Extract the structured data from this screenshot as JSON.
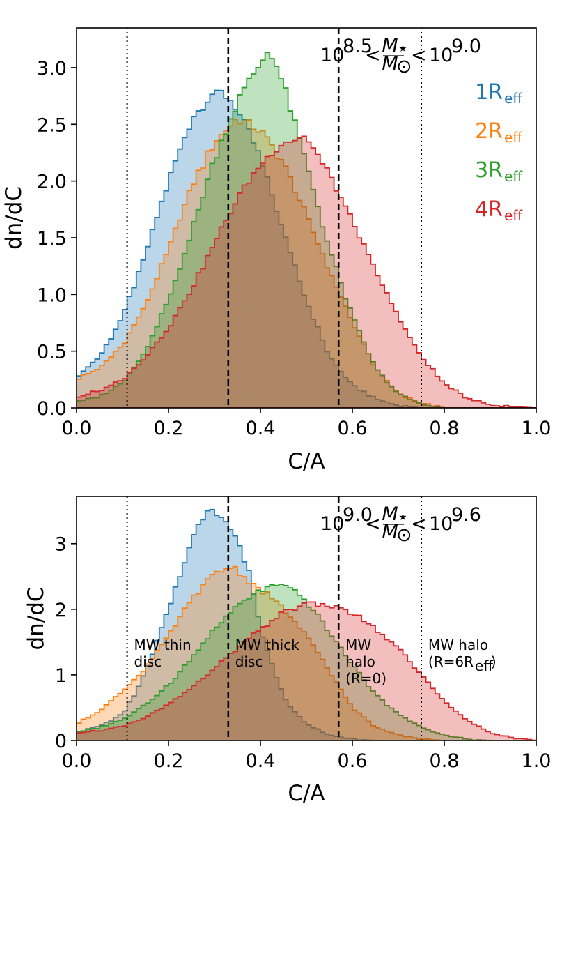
{
  "chart_data": [
    {
      "type": "histogram",
      "title_parts": {
        "low": "10",
        "low_exp": "8.5",
        "lt": "<",
        "mass_num": "M",
        "mass_num_sub": "⋆",
        "mass_den": "M",
        "mass_den_sub": "⊙",
        "high": "10",
        "high_exp": "9.0"
      },
      "xlabel": "C/A",
      "ylabel": "dn/dC",
      "xlim": [
        0,
        1
      ],
      "ylim": [
        0,
        3.35
      ],
      "xticks": [
        "0.0",
        "0.2",
        "0.4",
        "0.6",
        "0.8",
        "1.0"
      ],
      "yticks": [
        "0.0",
        "0.5",
        "1.0",
        "1.5",
        "2.0",
        "2.5",
        "3.0"
      ],
      "ytick_values": [
        0,
        0.5,
        1.0,
        1.5,
        2.0,
        2.5,
        3.0
      ],
      "reference_lines": [
        {
          "x": 0.11,
          "style": "dotted"
        },
        {
          "x": 0.33,
          "style": "dashed"
        },
        {
          "x": 0.57,
          "style": "dashed"
        },
        {
          "x": 0.75,
          "style": "dotted"
        }
      ],
      "series": [
        {
          "name": "1R",
          "sub": "eff",
          "color": "#1f77b4",
          "peak": [
            0.3,
            2.8
          ],
          "points": [
            [
              0.0,
              0.27
            ],
            [
              0.05,
              0.45
            ],
            [
              0.1,
              0.8
            ],
            [
              0.15,
              1.35
            ],
            [
              0.2,
              2.0
            ],
            [
              0.25,
              2.55
            ],
            [
              0.3,
              2.8
            ],
            [
              0.33,
              2.75
            ],
            [
              0.36,
              2.55
            ],
            [
              0.4,
              2.2
            ],
            [
              0.45,
              1.55
            ],
            [
              0.5,
              0.95
            ],
            [
              0.55,
              0.45
            ],
            [
              0.6,
              0.2
            ],
            [
              0.65,
              0.08
            ],
            [
              0.7,
              0.02
            ],
            [
              0.75,
              0.0
            ]
          ]
        },
        {
          "name": "2R",
          "sub": "eff",
          "color": "#ff7f0e",
          "peak": [
            0.36,
            2.55
          ],
          "points": [
            [
              0.0,
              0.25
            ],
            [
              0.05,
              0.35
            ],
            [
              0.1,
              0.55
            ],
            [
              0.15,
              0.9
            ],
            [
              0.2,
              1.4
            ],
            [
              0.25,
              1.95
            ],
            [
              0.3,
              2.35
            ],
            [
              0.35,
              2.55
            ],
            [
              0.4,
              2.45
            ],
            [
              0.45,
              2.15
            ],
            [
              0.5,
              1.7
            ],
            [
              0.55,
              1.2
            ],
            [
              0.6,
              0.75
            ],
            [
              0.65,
              0.35
            ],
            [
              0.7,
              0.12
            ],
            [
              0.75,
              0.04
            ],
            [
              0.8,
              0.0
            ]
          ]
        },
        {
          "name": "3R",
          "sub": "eff",
          "color": "#2ca02c",
          "peak": [
            0.42,
            3.18
          ],
          "points": [
            [
              0.0,
              0.05
            ],
            [
              0.05,
              0.1
            ],
            [
              0.1,
              0.22
            ],
            [
              0.15,
              0.5
            ],
            [
              0.2,
              0.95
            ],
            [
              0.25,
              1.55
            ],
            [
              0.3,
              2.2
            ],
            [
              0.35,
              2.7
            ],
            [
              0.4,
              3.05
            ],
            [
              0.42,
              3.18
            ],
            [
              0.45,
              2.85
            ],
            [
              0.5,
              2.15
            ],
            [
              0.55,
              1.4
            ],
            [
              0.6,
              0.8
            ],
            [
              0.65,
              0.35
            ],
            [
              0.7,
              0.12
            ],
            [
              0.75,
              0.03
            ],
            [
              0.8,
              0.0
            ]
          ]
        },
        {
          "name": "4R",
          "sub": "eff",
          "color": "#d62728",
          "peak": [
            0.48,
            2.45
          ],
          "points": [
            [
              0.0,
              0.1
            ],
            [
              0.05,
              0.15
            ],
            [
              0.1,
              0.25
            ],
            [
              0.15,
              0.45
            ],
            [
              0.2,
              0.7
            ],
            [
              0.25,
              1.05
            ],
            [
              0.3,
              1.45
            ],
            [
              0.35,
              1.85
            ],
            [
              0.4,
              2.15
            ],
            [
              0.45,
              2.35
            ],
            [
              0.5,
              2.4
            ],
            [
              0.55,
              2.05
            ],
            [
              0.6,
              1.65
            ],
            [
              0.65,
              1.2
            ],
            [
              0.7,
              0.8
            ],
            [
              0.75,
              0.45
            ],
            [
              0.8,
              0.22
            ],
            [
              0.85,
              0.08
            ],
            [
              0.9,
              0.03
            ],
            [
              0.95,
              0.01
            ],
            [
              1.0,
              0.0
            ]
          ]
        }
      ]
    },
    {
      "type": "histogram",
      "title_parts": {
        "low": "10",
        "low_exp": "9.0",
        "lt": "<",
        "mass_num": "M",
        "mass_num_sub": "⋆",
        "mass_den": "M",
        "mass_den_sub": "⊙",
        "high": "10",
        "high_exp": "9.6"
      },
      "xlabel": "C/A",
      "ylabel": "dn/dC",
      "xlim": [
        0,
        1
      ],
      "ylim": [
        0,
        3.72
      ],
      "xticks": [
        "0.0",
        "0.2",
        "0.4",
        "0.6",
        "0.8",
        "1.0"
      ],
      "yticks": [
        "0",
        "1",
        "2",
        "3"
      ],
      "ytick_values": [
        0,
        1,
        2,
        3
      ],
      "reference_lines": [
        {
          "x": 0.11,
          "style": "dotted"
        },
        {
          "x": 0.33,
          "style": "dashed"
        },
        {
          "x": 0.57,
          "style": "dashed"
        },
        {
          "x": 0.75,
          "style": "dotted"
        }
      ],
      "annotations": [
        {
          "x": 0.125,
          "lines": [
            "MW thin",
            "disc"
          ]
        },
        {
          "x": 0.345,
          "lines": [
            "MW thick",
            "disc"
          ]
        },
        {
          "x": 0.585,
          "lines": [
            "MW",
            "halo",
            "(R=0)"
          ]
        },
        {
          "x": 0.765,
          "lines": [
            "MW halo",
            "(R=6R",
            "eff",
            ")"
          ]
        }
      ],
      "series": [
        {
          "name": "1R",
          "sub": "eff",
          "color": "#1f77b4",
          "peak": [
            0.29,
            3.58
          ],
          "points": [
            [
              0.0,
              0.12
            ],
            [
              0.05,
              0.22
            ],
            [
              0.1,
              0.4
            ],
            [
              0.13,
              0.75
            ],
            [
              0.16,
              1.2
            ],
            [
              0.2,
              2.0
            ],
            [
              0.24,
              2.85
            ],
            [
              0.27,
              3.35
            ],
            [
              0.29,
              3.58
            ],
            [
              0.32,
              3.4
            ],
            [
              0.35,
              3.05
            ],
            [
              0.38,
              2.45
            ],
            [
              0.4,
              1.7
            ],
            [
              0.43,
              1.05
            ],
            [
              0.46,
              0.55
            ],
            [
              0.5,
              0.25
            ],
            [
              0.55,
              0.08
            ],
            [
              0.6,
              0.02
            ],
            [
              0.65,
              0.0
            ]
          ]
        },
        {
          "name": "2R",
          "sub": "eff",
          "color": "#ff7f0e",
          "peak": [
            0.34,
            2.65
          ],
          "points": [
            [
              0.0,
              0.25
            ],
            [
              0.05,
              0.45
            ],
            [
              0.1,
              0.75
            ],
            [
              0.15,
              1.1
            ],
            [
              0.2,
              1.6
            ],
            [
              0.25,
              2.15
            ],
            [
              0.3,
              2.55
            ],
            [
              0.34,
              2.65
            ],
            [
              0.38,
              2.4
            ],
            [
              0.42,
              2.2
            ],
            [
              0.45,
              2.0
            ],
            [
              0.5,
              1.6
            ],
            [
              0.55,
              1.05
            ],
            [
              0.6,
              0.5
            ],
            [
              0.65,
              0.2
            ],
            [
              0.7,
              0.08
            ],
            [
              0.75,
              0.02
            ],
            [
              0.8,
              0.0
            ]
          ]
        },
        {
          "name": "3R",
          "sub": "eff",
          "color": "#2ca02c",
          "peak": [
            0.44,
            2.38
          ],
          "points": [
            [
              0.0,
              0.12
            ],
            [
              0.05,
              0.2
            ],
            [
              0.1,
              0.32
            ],
            [
              0.15,
              0.55
            ],
            [
              0.2,
              0.85
            ],
            [
              0.25,
              1.25
            ],
            [
              0.3,
              1.7
            ],
            [
              0.35,
              2.05
            ],
            [
              0.4,
              2.3
            ],
            [
              0.44,
              2.38
            ],
            [
              0.48,
              2.25
            ],
            [
              0.52,
              1.95
            ],
            [
              0.56,
              1.55
            ],
            [
              0.6,
              1.15
            ],
            [
              0.65,
              0.7
            ],
            [
              0.7,
              0.4
            ],
            [
              0.75,
              0.2
            ],
            [
              0.8,
              0.08
            ],
            [
              0.85,
              0.02
            ],
            [
              0.9,
              0.0
            ]
          ]
        },
        {
          "name": "4R",
          "sub": "eff",
          "color": "#d62728",
          "peak": [
            0.51,
            2.12
          ],
          "points": [
            [
              0.0,
              0.12
            ],
            [
              0.05,
              0.15
            ],
            [
              0.1,
              0.22
            ],
            [
              0.15,
              0.35
            ],
            [
              0.2,
              0.55
            ],
            [
              0.25,
              0.8
            ],
            [
              0.3,
              1.1
            ],
            [
              0.35,
              1.4
            ],
            [
              0.4,
              1.7
            ],
            [
              0.45,
              1.95
            ],
            [
              0.5,
              2.1
            ],
            [
              0.55,
              2.05
            ],
            [
              0.6,
              1.95
            ],
            [
              0.65,
              1.7
            ],
            [
              0.7,
              1.4
            ],
            [
              0.75,
              1.0
            ],
            [
              0.8,
              0.6
            ],
            [
              0.85,
              0.3
            ],
            [
              0.9,
              0.12
            ],
            [
              0.95,
              0.04
            ],
            [
              1.0,
              0.0
            ]
          ]
        }
      ]
    }
  ]
}
